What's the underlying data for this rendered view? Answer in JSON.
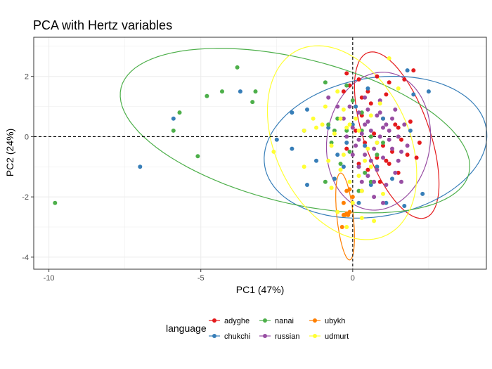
{
  "chart_data": {
    "type": "scatter",
    "title": "PCA with Hertz variables",
    "xlabel": "PC1 (47%)",
    "ylabel": "PC2 (24%)",
    "xlim": [
      -10.5,
      4.4
    ],
    "ylim": [
      -4.4,
      3.3
    ],
    "xticks": [
      -10,
      -5,
      0
    ],
    "yticks": [
      -4,
      -2,
      0,
      2
    ],
    "grid": true,
    "reference_lines": {
      "x": 0,
      "y": 0,
      "style": "dashed"
    },
    "legend": {
      "title": "language",
      "placement": "bottom"
    },
    "series": [
      {
        "name": "adyghe",
        "color": "#E41A1C",
        "ellipse": {
          "cx": 1.45,
          "cy": 0.05,
          "a": 2.9,
          "b": 1.08,
          "angle_deg": -71
        },
        "points": [
          [
            -0.3,
            1.5
          ],
          [
            -0.2,
            2.1
          ],
          [
            -0.1,
            1.7
          ],
          [
            0.2,
            1.9
          ],
          [
            0.5,
            1.5
          ],
          [
            0.8,
            2.0
          ],
          [
            1.2,
            1.8
          ],
          [
            1.7,
            1.9
          ],
          [
            2.0,
            2.2
          ],
          [
            0.3,
            0.7
          ],
          [
            0.6,
            1.1
          ],
          [
            1.0,
            0.6
          ],
          [
            1.4,
            0.4
          ],
          [
            1.9,
            0.5
          ],
          [
            0.1,
            0.2
          ],
          [
            0.4,
            -0.2
          ],
          [
            0.7,
            0.1
          ],
          [
            1.0,
            -0.3
          ],
          [
            1.3,
            -0.5
          ],
          [
            1.6,
            -0.1
          ],
          [
            2.2,
            -0.2
          ],
          [
            0.2,
            -0.9
          ],
          [
            0.5,
            -1.1
          ],
          [
            0.8,
            -0.7
          ],
          [
            1.2,
            -0.9
          ],
          [
            1.5,
            -1.2
          ],
          [
            1.8,
            -0.6
          ],
          [
            2.1,
            -0.7
          ],
          [
            -0.2,
            -0.4
          ],
          [
            0.9,
            -1.5
          ],
          [
            1.1,
            -0.8
          ],
          [
            1.5,
            0.3
          ],
          [
            0.3,
            1.3
          ],
          [
            1.1,
            1.4
          ]
        ]
      },
      {
        "name": "chukchi",
        "color": "#377EB8",
        "ellipse": {
          "cx": 0.75,
          "cy": -0.35,
          "a": 3.7,
          "b": 2.3,
          "angle_deg": 10
        },
        "points": [
          [
            -7.0,
            -1.0
          ],
          [
            -5.9,
            0.6
          ],
          [
            -3.7,
            1.5
          ],
          [
            2.5,
            1.5
          ],
          [
            2.0,
            1.4
          ],
          [
            1.8,
            2.2
          ],
          [
            -2.0,
            0.8
          ],
          [
            -1.5,
            0.9
          ],
          [
            -1.6,
            0.2
          ],
          [
            -2.0,
            -0.4
          ],
          [
            -2.5,
            -0.1
          ],
          [
            -1.5,
            -1.6
          ],
          [
            -0.6,
            -1.4
          ],
          [
            -0.2,
            -0.2
          ],
          [
            0.2,
            -2.2
          ],
          [
            0.6,
            -1.6
          ],
          [
            1.1,
            -2.2
          ],
          [
            1.7,
            -2.3
          ],
          [
            2.3,
            -1.9
          ],
          [
            1.0,
            0.6
          ],
          [
            0.1,
            1.0
          ],
          [
            0.4,
            -0.3
          ],
          [
            -0.5,
            -0.6
          ],
          [
            1.3,
            -1.4
          ],
          [
            0.8,
            -1.0
          ],
          [
            -0.8,
            0.3
          ],
          [
            -1.2,
            -0.8
          ],
          [
            0.5,
            1.6
          ],
          [
            0.0,
            0.4
          ],
          [
            -0.3,
            -1.0
          ],
          [
            1.9,
            0.2
          ]
        ]
      },
      {
        "name": "nanai",
        "color": "#4DAF4A",
        "ellipse": {
          "cx": -1.9,
          "cy": 0.2,
          "a": 5.9,
          "b": 2.4,
          "angle_deg": -14
        },
        "points": [
          [
            -9.8,
            -2.2
          ],
          [
            -5.7,
            0.8
          ],
          [
            -5.9,
            0.2
          ],
          [
            -5.1,
            -0.65
          ],
          [
            -4.8,
            1.35
          ],
          [
            -4.3,
            1.5
          ],
          [
            -3.8,
            2.3
          ],
          [
            -3.3,
            1.15
          ],
          [
            -3.2,
            1.5
          ],
          [
            -0.9,
            1.8
          ],
          [
            -0.8,
            0.4
          ],
          [
            -0.7,
            -0.2
          ],
          [
            -0.4,
            -0.9
          ],
          [
            -0.1,
            -0.5
          ],
          [
            0.2,
            -1.0
          ],
          [
            0.4,
            -1.2
          ],
          [
            0.0,
            1.2
          ],
          [
            0.3,
            0.8
          ],
          [
            0.6,
            0.0
          ],
          [
            0.8,
            -0.6
          ],
          [
            1.0,
            -0.2
          ],
          [
            -0.5,
            0.6
          ],
          [
            0.6,
            -1.5
          ],
          [
            0.2,
            -1.8
          ],
          [
            -0.9,
            -1.5
          ],
          [
            -0.2,
            0.2
          ],
          [
            0.3,
            0.2
          ],
          [
            -0.2,
            1.7
          ],
          [
            -0.6,
            0.2
          ]
        ]
      },
      {
        "name": "russian",
        "color": "#984EA3",
        "ellipse": {
          "cx": 0.85,
          "cy": -0.15,
          "a": 2.3,
          "b": 1.7,
          "angle_deg": 82
        },
        "points": [
          [
            -0.8,
            1.3
          ],
          [
            -0.5,
            1.0
          ],
          [
            -0.3,
            0.6
          ],
          [
            -0.1,
            1.0
          ],
          [
            0.2,
            0.8
          ],
          [
            0.5,
            0.5
          ],
          [
            0.8,
            0.7
          ],
          [
            1.1,
            0.4
          ],
          [
            1.4,
            0.9
          ],
          [
            1.7,
            0.4
          ],
          [
            0.0,
            0.3
          ],
          [
            0.3,
            0.1
          ],
          [
            0.6,
            0.2
          ],
          [
            0.9,
            0.0
          ],
          [
            1.2,
            -0.1
          ],
          [
            1.5,
            0.0
          ],
          [
            0.1,
            -0.3
          ],
          [
            0.4,
            -0.6
          ],
          [
            0.7,
            -0.4
          ],
          [
            1.0,
            -0.7
          ],
          [
            1.3,
            -0.4
          ],
          [
            1.6,
            -0.5
          ],
          [
            0.2,
            -1.0
          ],
          [
            0.5,
            -1.3
          ],
          [
            0.8,
            -1.1
          ],
          [
            1.1,
            -1.6
          ],
          [
            1.4,
            -1.2
          ],
          [
            0.3,
            -1.8
          ],
          [
            0.7,
            -2.0
          ],
          [
            1.0,
            -2.2
          ],
          [
            0.5,
            0.9
          ],
          [
            0.9,
            1.2
          ],
          [
            1.2,
            0.2
          ],
          [
            0.0,
            -0.6
          ],
          [
            0.6,
            -0.8
          ],
          [
            1.8,
            -0.3
          ],
          [
            0.4,
            0.4
          ],
          [
            1.0,
            0.3
          ],
          [
            0.2,
            -0.1
          ],
          [
            0.8,
            -0.2
          ],
          [
            1.5,
            -0.8
          ],
          [
            0.3,
            -1.5
          ],
          [
            -0.2,
            0.0
          ],
          [
            1.3,
            0.6
          ],
          [
            0.7,
            -1.5
          ],
          [
            1.6,
            -1.5
          ],
          [
            0.4,
            1.3
          ],
          [
            0.9,
            0.8
          ]
        ]
      },
      {
        "name": "ubykh",
        "color": "#FF7F00",
        "ellipse": {
          "cx": -0.25,
          "cy": -2.65,
          "a": 1.45,
          "b": 0.27,
          "angle_deg": -84
        },
        "points": [
          [
            -0.3,
            -2.6
          ],
          [
            -0.2,
            -2.55
          ],
          [
            -0.1,
            -2.5
          ],
          [
            -0.35,
            -3.0
          ],
          [
            -0.2,
            -1.8
          ],
          [
            -0.1,
            -1.75
          ],
          [
            -0.3,
            -2.2
          ],
          [
            0.0,
            -2.0
          ],
          [
            -0.25,
            -2.6
          ],
          [
            -0.15,
            -2.6
          ]
        ]
      },
      {
        "name": "udmurt",
        "color": "#FFFF33",
        "ellipse": {
          "cx": -0.35,
          "cy": -0.2,
          "a": 3.4,
          "b": 2.2,
          "angle_deg": 115
        },
        "points": [
          [
            -2.6,
            -0.5
          ],
          [
            -1.6,
            0.2
          ],
          [
            -1.0,
            0.4
          ],
          [
            -0.7,
            -0.3
          ],
          [
            -0.5,
            1.5
          ],
          [
            -0.3,
            0.9
          ],
          [
            -0.1,
            0.4
          ],
          [
            0.2,
            0.2
          ],
          [
            0.5,
            -0.4
          ],
          [
            0.8,
            -0.2
          ],
          [
            -0.8,
            -0.8
          ],
          [
            -0.4,
            -1.1
          ],
          [
            -0.1,
            -1.5
          ],
          [
            0.3,
            -1.8
          ],
          [
            0.6,
            -1.0
          ],
          [
            -1.2,
            0.3
          ],
          [
            -0.6,
            0.1
          ],
          [
            -0.3,
            -0.6
          ],
          [
            0.0,
            -2.2
          ],
          [
            0.3,
            -2.7
          ],
          [
            0.7,
            -2.8
          ],
          [
            -0.2,
            -3.0
          ],
          [
            -0.5,
            -2.5
          ],
          [
            1.2,
            2.6
          ],
          [
            1.5,
            1.6
          ],
          [
            0.9,
            1.1
          ],
          [
            -0.9,
            1.0
          ],
          [
            -1.3,
            0.6
          ],
          [
            0.1,
            0.6
          ],
          [
            0.4,
            -0.8
          ],
          [
            -0.2,
            0.3
          ],
          [
            0.6,
            0.7
          ],
          [
            -1.6,
            -1.0
          ],
          [
            -0.7,
            -1.7
          ],
          [
            0.2,
            -1.3
          ],
          [
            1.0,
            -1.9
          ],
          [
            -0.4,
            0.6
          ]
        ]
      }
    ]
  }
}
